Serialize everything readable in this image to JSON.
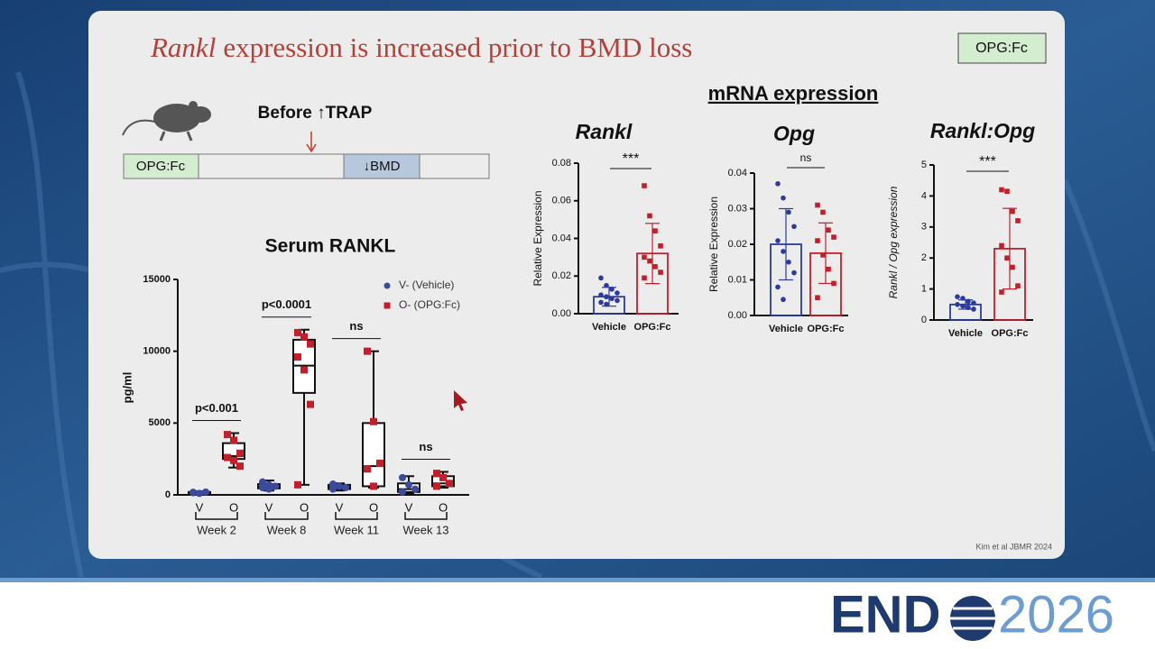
{
  "slide": {
    "title_italic": "Rankl",
    "title_rest": "expression is increased prior to BMD loss",
    "badge": "OPG:Fc",
    "timeline": {
      "label": "Before ↑TRAP",
      "segments": [
        "OPG:Fc",
        "↓BMD"
      ]
    },
    "section_title": "mRNA expression",
    "citation": "Kim et al JBMR 2024",
    "logo": [
      "END",
      "2026"
    ]
  },
  "chart_data": [
    {
      "type": "box",
      "title": "Serum RANKL",
      "y_label": "pg/ml",
      "ylim": [
        0,
        15000
      ],
      "yticks": [
        0,
        5000,
        10000,
        15000
      ],
      "groups": [
        "Week 2",
        "Week 8",
        "Week 11",
        "Week 13"
      ],
      "comparisons": [
        "p<0.001",
        "p<0.0001",
        "ns",
        "ns"
      ],
      "series": [
        {
          "name": "V- (Vehicle)",
          "tick": "V",
          "color": "#3b4a9c",
          "boxes": [
            {
              "min": 50,
              "q1": 100,
              "median": 150,
              "q3": 200,
              "max": 250,
              "points": [
                150,
                100,
                200,
                180
              ]
            },
            {
              "min": 300,
              "q1": 450,
              "median": 600,
              "q3": 750,
              "max": 1000,
              "points": [
                900,
                700,
                600,
                500,
                400
              ]
            },
            {
              "min": 300,
              "q1": 400,
              "median": 550,
              "q3": 700,
              "max": 800,
              "points": [
                750,
                600,
                500,
                400
              ]
            },
            {
              "min": 100,
              "q1": 200,
              "median": 400,
              "q3": 800,
              "max": 1300,
              "points": [
                1200,
                700,
                400,
                200
              ]
            }
          ]
        },
        {
          "name": "O- (OPG:Fc)",
          "tick": "O",
          "color": "#c01f2b",
          "boxes": [
            {
              "min": 1900,
              "q1": 2500,
              "median": 2700,
              "q3": 3600,
              "max": 4300,
              "points": [
                4200,
                3800,
                2900,
                2600,
                2400,
                2000
              ]
            },
            {
              "min": 700,
              "q1": 7100,
              "median": 9000,
              "q3": 10800,
              "max": 11500,
              "points": [
                11300,
                11000,
                10500,
                9600,
                8700,
                6300,
                700
              ]
            },
            {
              "min": 500,
              "q1": 600,
              "median": 2000,
              "q3": 5000,
              "max": 10000,
              "points": [
                10000,
                5100,
                2200,
                1800,
                600
              ]
            },
            {
              "min": 500,
              "q1": 600,
              "median": 800,
              "q3": 1300,
              "max": 1600,
              "points": [
                1500,
                1200,
                800,
                600
              ]
            }
          ]
        }
      ]
    },
    {
      "type": "bar_dot",
      "title": "Rankl",
      "y_label": "Relative Expression",
      "ylim": [
        0,
        0.08
      ],
      "yticks": [
        {
          "value": 0,
          "label": "0.00"
        },
        0.02,
        0.04,
        0.06,
        0.08
      ],
      "categories": [
        "Vehicle",
        "OPG:Fc"
      ],
      "colors": [
        "#2b3a9c",
        "#c01f2b"
      ],
      "values": [
        0.009,
        0.032
      ],
      "errors": [
        0.005,
        0.016
      ],
      "significance": "***",
      "points": [
        [
          0.019,
          0.015,
          0.013,
          0.011,
          0.01,
          0.009,
          0.008,
          0.007,
          0.006,
          0.005
        ],
        [
          0.068,
          0.052,
          0.044,
          0.036,
          0.03,
          0.028,
          0.025,
          0.022,
          0.019
        ]
      ]
    },
    {
      "type": "bar_dot",
      "title": "Opg",
      "y_label": "Relative Expression",
      "ylim": [
        0,
        0.04
      ],
      "yticks": [
        {
          "value": 0,
          "label": "0.00"
        },
        0.01,
        0.02,
        0.03,
        0.04
      ],
      "categories": [
        "Vehicle",
        "OPG:Fc"
      ],
      "colors": [
        "#2b3a9c",
        "#c01f2b"
      ],
      "values": [
        0.02,
        0.0175
      ],
      "errors": [
        0.01,
        0.0085
      ],
      "significance": "ns",
      "points": [
        [
          0.037,
          0.033,
          0.029,
          0.025,
          0.021,
          0.018,
          0.015,
          0.012,
          0.008,
          0.0045
        ],
        [
          0.031,
          0.029,
          0.024,
          0.022,
          0.021,
          0.017,
          0.013,
          0.009,
          0.005
        ]
      ]
    },
    {
      "type": "bar_dot",
      "title": "Rankl:Opg",
      "y_label": "Rankl / Opg expression",
      "ylim": [
        0,
        5
      ],
      "yticks": [
        0,
        1,
        2,
        3,
        4,
        5
      ],
      "categories": [
        "Vehicle",
        "OPG:Fc"
      ],
      "colors": [
        "#2b3a9c",
        "#c01f2b"
      ],
      "values": [
        0.5,
        2.3
      ],
      "errors": [
        0.15,
        1.3
      ],
      "significance": "***",
      "points": [
        [
          0.75,
          0.7,
          0.6,
          0.55,
          0.5,
          0.45,
          0.4,
          0.35
        ],
        [
          4.2,
          4.15,
          3.5,
          3.2,
          2.4,
          2.0,
          1.7,
          1.1,
          0.9
        ]
      ]
    }
  ]
}
